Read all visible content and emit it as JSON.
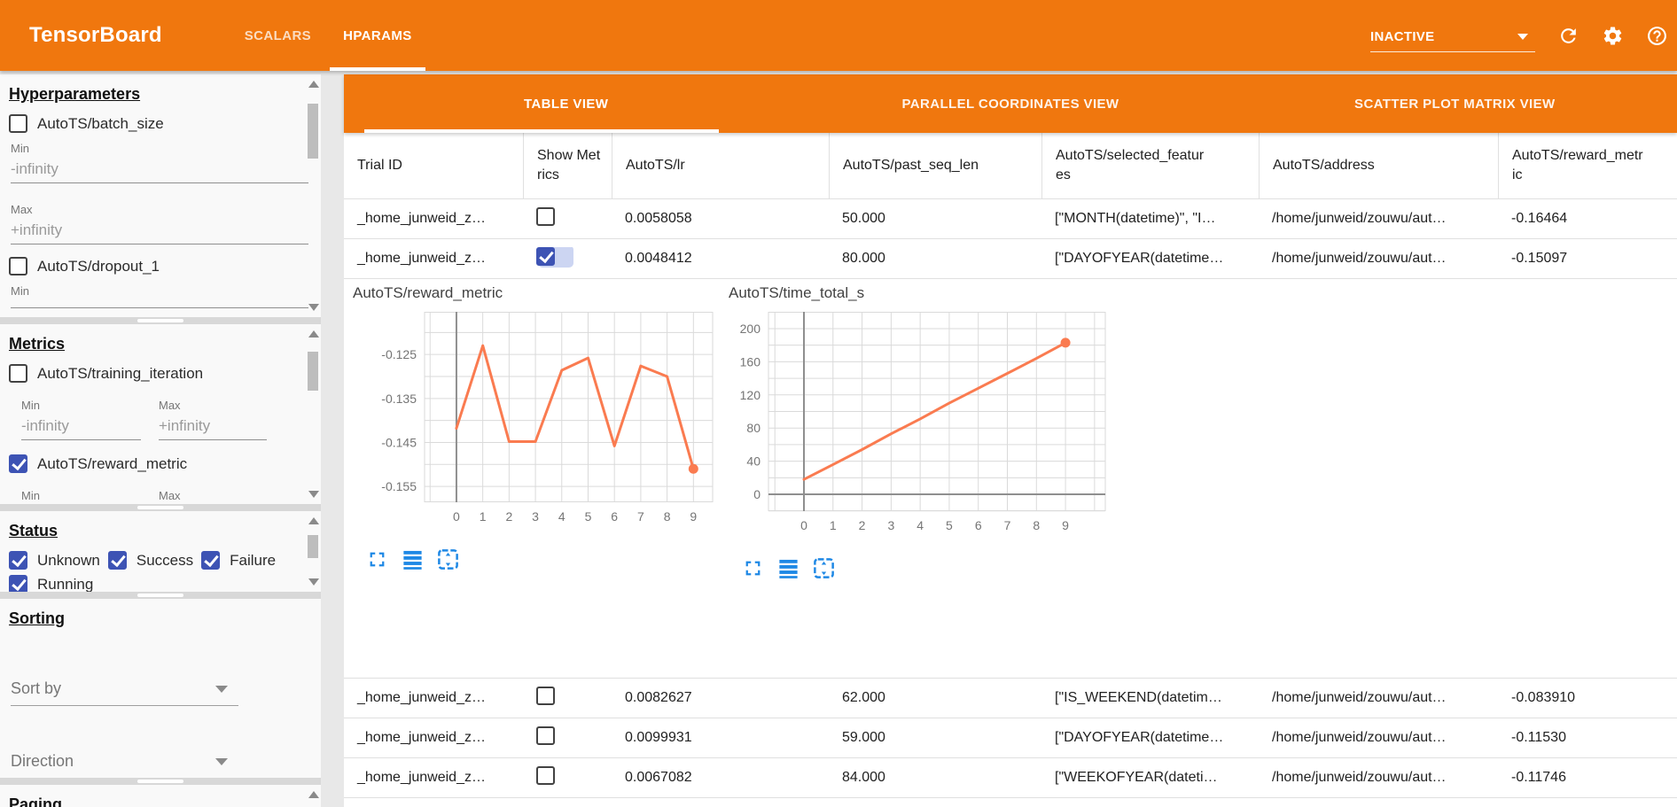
{
  "header": {
    "app_title": "TensorBoard",
    "nav_tabs": [
      {
        "label": "SCALARS"
      },
      {
        "label": "HPARAMS"
      }
    ],
    "reload_status": "INACTIVE",
    "accent_color": "#f0770e"
  },
  "sidebar": {
    "hyperparameters": {
      "title": "Hyperparameters",
      "params": [
        {
          "label": "AutoTS/batch_size",
          "checked": false,
          "min": {
            "label": "Min",
            "value": "-infinity"
          },
          "max": {
            "label": "Max",
            "value": "+infinity"
          }
        },
        {
          "label": "AutoTS/dropout_1",
          "checked": false,
          "min": {
            "label": "Min",
            "value": ""
          }
        }
      ]
    },
    "metrics": {
      "title": "Metrics",
      "items": [
        {
          "label": "AutoTS/training_iteration",
          "checked": false,
          "min": {
            "label": "Min",
            "value": "-infinity"
          },
          "max": {
            "label": "Max",
            "value": "+infinity"
          }
        },
        {
          "label": "AutoTS/reward_metric",
          "checked": true,
          "min": {
            "label": "Min",
            "value": ""
          },
          "max": {
            "label": "Max",
            "value": ""
          }
        }
      ]
    },
    "status": {
      "title": "Status",
      "options": [
        {
          "label": "Unknown",
          "checked": true
        },
        {
          "label": "Success",
          "checked": true
        },
        {
          "label": "Failure",
          "checked": true
        },
        {
          "label": "Running",
          "checked": true
        }
      ]
    },
    "sorting": {
      "title": "Sorting",
      "sort_by_placeholder": "Sort by",
      "direction_placeholder": "Direction"
    },
    "paging": {
      "title": "Paging"
    }
  },
  "main": {
    "view_tabs": [
      {
        "label": "TABLE VIEW",
        "active": true
      },
      {
        "label": "PARALLEL COORDINATES VIEW",
        "active": false
      },
      {
        "label": "SCATTER PLOT MATRIX VIEW",
        "active": false
      }
    ],
    "table": {
      "columns": [
        "Trial ID",
        "Show Metrics",
        "AutoTS/lr",
        "AutoTS/past_seq_len",
        "AutoTS/selected_features",
        "AutoTS/address",
        "AutoTS/reward_metric"
      ],
      "rows": [
        {
          "trial_id": "_home_junweid_z…",
          "show_metrics": false,
          "lr": "0.0058058",
          "past_seq_len": "50.000",
          "selected_features": "[\"MONTH(datetime)\", \"I…",
          "address": "/home/junweid/zouwu/aut…",
          "reward_metric": "-0.16464"
        },
        {
          "trial_id": "_home_junweid_z…",
          "show_metrics": true,
          "lr": "0.0048412",
          "past_seq_len": "80.000",
          "selected_features": "[\"DAYOFYEAR(datetime…",
          "address": "/home/junweid/zouwu/aut…",
          "reward_metric": "-0.15097"
        },
        {
          "trial_id": "_home_junweid_z…",
          "show_metrics": false,
          "lr": "0.0082627",
          "past_seq_len": "62.000",
          "selected_features": "[\"IS_WEEKEND(datetim…",
          "address": "/home/junweid/zouwu/aut…",
          "reward_metric": "-0.083910"
        },
        {
          "trial_id": "_home_junweid_z…",
          "show_metrics": false,
          "lr": "0.0099931",
          "past_seq_len": "59.000",
          "selected_features": "[\"DAYOFYEAR(datetime…",
          "address": "/home/junweid/zouwu/aut…",
          "reward_metric": "-0.11530"
        },
        {
          "trial_id": "_home_junweid_z…",
          "show_metrics": false,
          "lr": "0.0067082",
          "past_seq_len": "84.000",
          "selected_features": "[\"WEEKOFYEAR(dateti…",
          "address": "/home/junweid/zouwu/aut…",
          "reward_metric": "-0.11746"
        }
      ]
    }
  },
  "chart_data": [
    {
      "type": "line",
      "title": "AutoTS/reward_metric",
      "x": [
        0,
        1,
        2,
        3,
        4,
        5,
        6,
        7,
        8,
        9
      ],
      "values": [
        -0.1418,
        -0.123,
        -0.1448,
        -0.1448,
        -0.1286,
        -0.1258,
        -0.1458,
        -0.1276,
        -0.13,
        -0.151
      ],
      "x_ticks": [
        0,
        1,
        2,
        3,
        4,
        5,
        6,
        7,
        8,
        9
      ],
      "y_ticks": [
        {
          "v": -0.125,
          "label": "-0.125"
        },
        {
          "v": -0.135,
          "label": "-0.135"
        },
        {
          "v": -0.145,
          "label": "-0.145"
        },
        {
          "v": -0.155,
          "label": "-0.155"
        }
      ],
      "ylim": [
        -0.1586,
        -0.1153
      ],
      "xlim": [
        -1.21,
        9.73
      ],
      "y_minor_step": 0.005,
      "zero_x_axis": true,
      "zero_y_axis": false,
      "grid": true,
      "legend": "none",
      "line_color": "#fa7b50",
      "end_marker": true
    },
    {
      "type": "line",
      "title": "AutoTS/time_total_s",
      "x": [
        0,
        1,
        2,
        3,
        4,
        5,
        6,
        7,
        8,
        9
      ],
      "values": [
        18,
        36,
        54,
        73,
        91,
        110,
        128,
        146,
        164,
        183
      ],
      "x_ticks": [
        0,
        1,
        2,
        3,
        4,
        5,
        6,
        7,
        8,
        9
      ],
      "y_ticks": [
        {
          "v": 0,
          "label": "0"
        },
        {
          "v": 40,
          "label": "40"
        },
        {
          "v": 80,
          "label": "80"
        },
        {
          "v": 120,
          "label": "120"
        },
        {
          "v": 160,
          "label": "160"
        },
        {
          "v": 200,
          "label": "200"
        }
      ],
      "ylim": [
        -20.3,
        220.3
      ],
      "xlim": [
        -1.22,
        10.37
      ],
      "y_minor_step": 20,
      "zero_x_axis": true,
      "zero_y_axis": true,
      "grid": true,
      "legend": "none",
      "line_color": "#fa7b50",
      "end_marker": true
    }
  ],
  "chart_toolbar": {
    "icons": [
      "expand-icon",
      "list-icon",
      "pan-icon"
    ],
    "color": "#1e88e5"
  }
}
